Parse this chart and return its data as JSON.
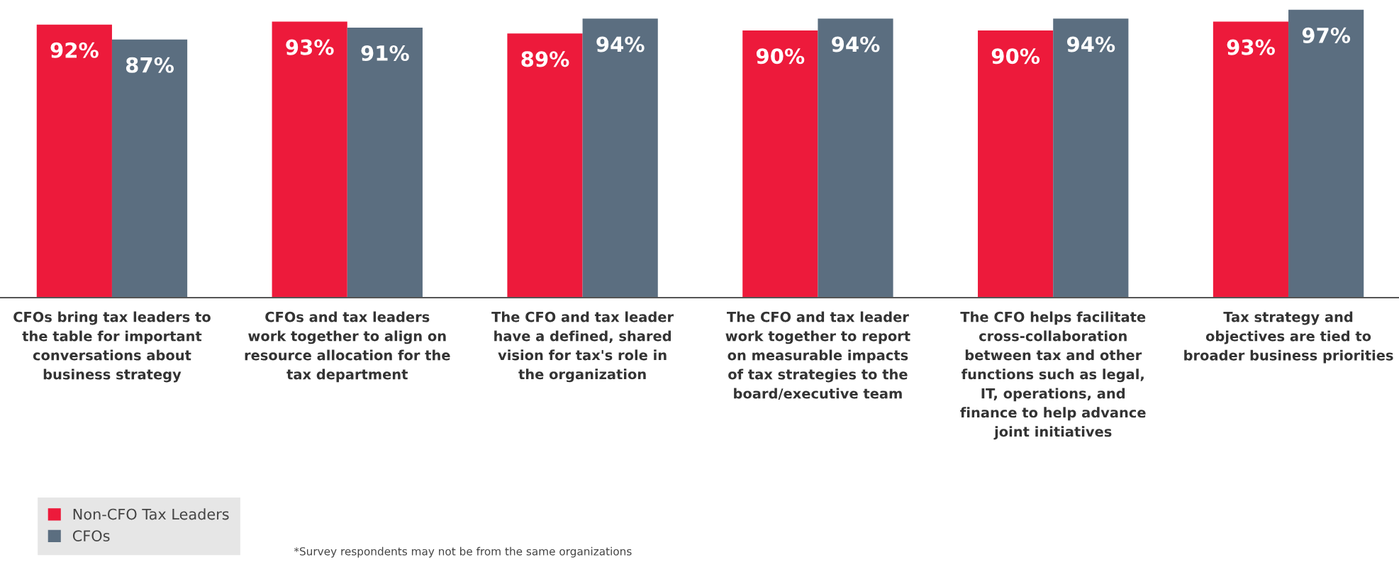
{
  "chart_data": {
    "type": "bar",
    "categories": [
      "CFOs bring tax leaders to\nthe table for important\nconversations about\nbusiness strategy",
      "CFOs and tax leaders\nwork together to align on\nresource allocation for the\ntax department",
      "The CFO and tax leader\nhave a defined, shared\nvision for tax's role in\nthe organization",
      "The CFO and tax leader\nwork together to report\non measurable impacts\nof tax strategies to the\nboard/executive team",
      "The CFO helps facilitate\ncross-collaboration\nbetween tax and other\nfunctions such as legal,\nIT, operations, and\nfinance to help advance\njoint initiatives",
      "Tax strategy and\nobjectives are tied to\nbroader business priorities"
    ],
    "series": [
      {
        "name": "Non-CFO Tax Leaders",
        "color": "#ed1a3b",
        "values": [
          92,
          93,
          89,
          90,
          90,
          93
        ],
        "value_labels": [
          "92%",
          "93%",
          "89%",
          "90%",
          "90%",
          "93%"
        ]
      },
      {
        "name": "CFOs",
        "color": "#5b6e80",
        "values": [
          87,
          91,
          94,
          94,
          94,
          97
        ],
        "value_labels": [
          "87%",
          "91%",
          "94%",
          "94%",
          "94%",
          "97%"
        ]
      }
    ],
    "tick_labels": "x",
    "grid": false,
    "legend": "bottom left",
    "annotations": [
      "*Survey respondents may not be from the same organizations"
    ]
  }
}
